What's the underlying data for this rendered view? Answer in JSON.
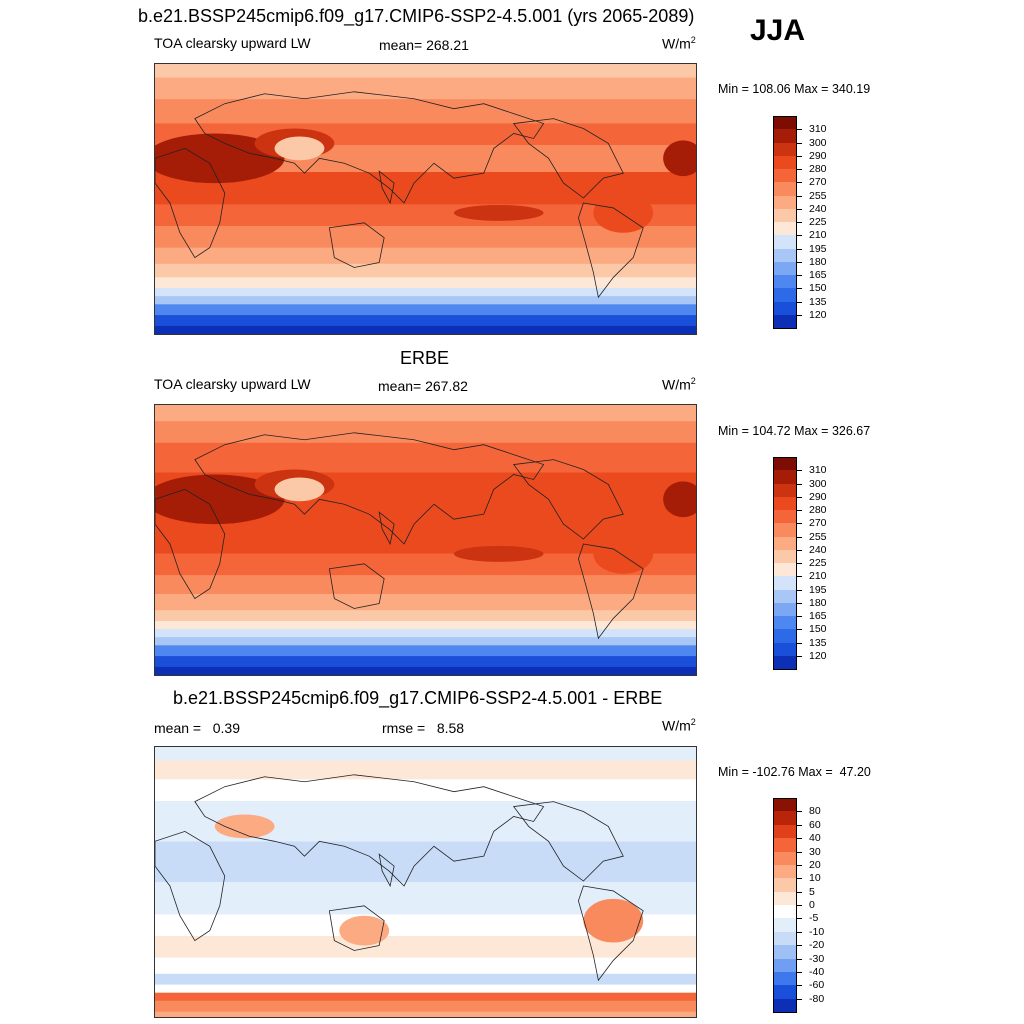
{
  "season": "JJA",
  "palette_abs": [
    "#08088f",
    "#0c2fb5",
    "#1a4fd9",
    "#2d6ae8",
    "#4f87f0",
    "#7ba7f3",
    "#a8c6f6",
    "#d3e3fa",
    "#fde8d8",
    "#fcc9a8",
    "#fbaa82",
    "#f98a5e",
    "#f4663a",
    "#ea4a1d",
    "#cc3310",
    "#a51d07",
    "#7d0d03"
  ],
  "palette_diff": [
    "#08088f",
    "#0c2fb5",
    "#1a4fd9",
    "#3d78ed",
    "#6f9ef2",
    "#9ec0f5",
    "#c8dcf8",
    "#e3eefb",
    "#ffffff",
    "#fde8d8",
    "#fcc9a8",
    "#fbaa82",
    "#f98a5e",
    "#f4663a",
    "#e0401a",
    "#b8250b",
    "#8a1203"
  ],
  "panels": [
    {
      "title": "b.e21.BSSP245cmip6.f09_g17.CMIP6-SSP2-4.5.001 (yrs 2065-2089)",
      "variable": "TOA clearsky upward LW",
      "stat": "mean= 268.21",
      "units": "W/m",
      "units_exp": "2",
      "minmax": "Min = 108.06 Max = 340.19",
      "levels": [
        "310",
        "300",
        "290",
        "280",
        "270",
        "255",
        "240",
        "225",
        "210",
        "195",
        "180",
        "165",
        "150",
        "135",
        "120"
      ]
    },
    {
      "title": "ERBE",
      "variable": "TOA clearsky upward LW",
      "stat": "mean= 267.82",
      "units": "W/m",
      "units_exp": "2",
      "minmax": "Min = 104.72 Max = 326.67",
      "levels": [
        "310",
        "300",
        "290",
        "280",
        "270",
        "255",
        "240",
        "225",
        "210",
        "195",
        "180",
        "165",
        "150",
        "135",
        "120"
      ]
    },
    {
      "title": "b.e21.BSSP245cmip6.f09_g17.CMIP6-SSP2-4.5.001 - ERBE",
      "stat_left": "mean =   0.39",
      "stat_mid": "rmse =   8.58",
      "units": "W/m",
      "units_exp": "2",
      "minmax": "Min = -102.76 Max =  47.20",
      "levels": [
        "80",
        "60",
        "40",
        "30",
        "20",
        "10",
        "5",
        "0",
        "-5",
        "-10",
        "-20",
        "-30",
        "-40",
        "-60",
        "-80"
      ]
    }
  ],
  "chart_data": [
    {
      "type": "heatmap",
      "title": "b.e21.BSSP245cmip6.f09_g17.CMIP6-SSP2-4.5.001 (yrs 2065-2089)",
      "variable": "TOA clearsky upward LW",
      "mean": 268.21,
      "min": 108.06,
      "max": 340.19,
      "units": "W/m2",
      "contour_levels": [
        120,
        135,
        150,
        165,
        180,
        195,
        210,
        225,
        240,
        255,
        270,
        280,
        290,
        300,
        310
      ]
    },
    {
      "type": "heatmap",
      "title": "ERBE",
      "variable": "TOA clearsky upward LW",
      "mean": 267.82,
      "min": 104.72,
      "max": 326.67,
      "units": "W/m2",
      "contour_levels": [
        120,
        135,
        150,
        165,
        180,
        195,
        210,
        225,
        240,
        255,
        270,
        280,
        290,
        300,
        310
      ]
    },
    {
      "type": "heatmap",
      "title": "b.e21.BSSP245cmip6.f09_g17.CMIP6-SSP2-4.5.001 - ERBE",
      "mean": 0.39,
      "rmse": 8.58,
      "min": -102.76,
      "max": 47.2,
      "units": "W/m2",
      "contour_levels": [
        -80,
        -60,
        -40,
        -30,
        -20,
        -10,
        -5,
        0,
        5,
        10,
        20,
        30,
        40,
        60,
        80
      ]
    }
  ]
}
